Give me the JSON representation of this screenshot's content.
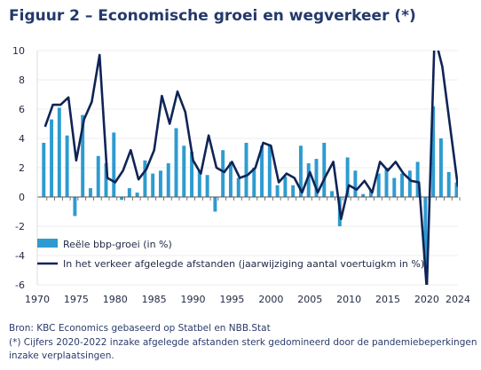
{
  "header": {
    "title": "Figuur 2 – Economische groei en wegverkeer (*)"
  },
  "footer": {
    "source": "Bron: KBC Economics gebaseerd op Statbel en NBB.Stat",
    "note_line1": "(*) Cijfers 2020-2022 inzake afgelegde afstanden sterk gedomineerd door de pandemiebeperkingen",
    "note_line2": "inzake verplaatsingen."
  },
  "colors": {
    "bar": "#2e9bd0",
    "line": "#0f2456",
    "axis": "#555555"
  },
  "chart_data": {
    "type": "bar+line",
    "title": "Figuur 2 – Economische groei en wegverkeer (*)",
    "xlabel": "",
    "ylabel": "",
    "ylim": [
      -6,
      10
    ],
    "yticks": [
      -6,
      -4,
      -2,
      0,
      2,
      4,
      6,
      8,
      10
    ],
    "xticks": [
      1970,
      1975,
      1980,
      1985,
      1990,
      1995,
      2000,
      2005,
      2010,
      2015,
      2020,
      2024
    ],
    "x": [
      1971,
      1972,
      1973,
      1974,
      1975,
      1976,
      1977,
      1978,
      1979,
      1980,
      1981,
      1982,
      1983,
      1984,
      1985,
      1986,
      1987,
      1988,
      1989,
      1990,
      1991,
      1992,
      1993,
      1994,
      1995,
      1996,
      1997,
      1998,
      1999,
      2000,
      2001,
      2002,
      2003,
      2004,
      2005,
      2006,
      2007,
      2008,
      2009,
      2010,
      2011,
      2012,
      2013,
      2014,
      2015,
      2016,
      2017,
      2018,
      2019,
      2020,
      2021,
      2022,
      2023,
      2024
    ],
    "legend_position": "lower-left",
    "series": [
      {
        "name": "Reële bbp-groei (in %)",
        "kind": "bar",
        "values": [
          3.7,
          5.3,
          6.1,
          4.2,
          -1.3,
          5.6,
          0.6,
          2.8,
          2.3,
          4.4,
          -0.2,
          0.6,
          0.3,
          2.5,
          1.6,
          1.8,
          2.3,
          4.7,
          3.5,
          3.1,
          1.8,
          1.5,
          -1.0,
          3.2,
          2.4,
          1.3,
          3.7,
          2.0,
          3.5,
          3.6,
          0.8,
          1.4,
          0.8,
          3.5,
          2.3,
          2.6,
          3.7,
          0.4,
          -2.0,
          2.7,
          1.8,
          0.2,
          0.5,
          1.6,
          2.0,
          1.3,
          1.6,
          1.8,
          2.4,
          -4.8,
          6.2,
          4.0,
          1.7,
          1.0
        ]
      },
      {
        "name": "In het verkeer afgelegde afstanden (jaarwijziging aantal voertuigkm in %)",
        "kind": "line",
        "values": [
          4.8,
          6.3,
          6.3,
          6.8,
          2.5,
          5.3,
          6.5,
          9.7,
          1.3,
          1.0,
          1.8,
          3.2,
          1.2,
          1.9,
          3.2,
          6.9,
          5.0,
          7.2,
          5.8,
          2.5,
          1.6,
          4.2,
          2.0,
          1.7,
          2.4,
          1.3,
          1.5,
          2.0,
          3.7,
          3.5,
          1.0,
          1.6,
          1.3,
          0.3,
          1.7,
          0.3,
          1.4,
          2.4,
          -1.5,
          0.8,
          0.5,
          1.1,
          0.3,
          2.4,
          1.8,
          2.4,
          1.6,
          1.1,
          1.0,
          -6.3,
          11.0,
          8.9,
          4.8,
          0.7
        ]
      }
    ]
  }
}
